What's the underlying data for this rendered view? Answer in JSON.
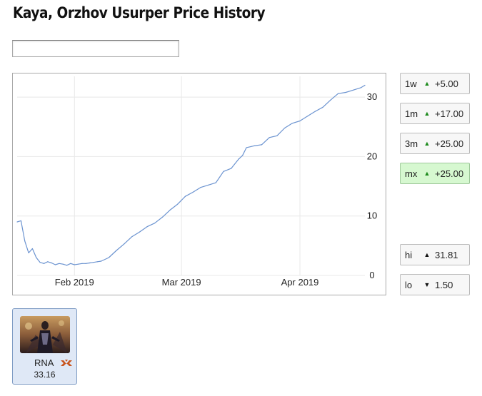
{
  "page": {
    "title": "Kaya, Orzhov Usurper Price History"
  },
  "search": {
    "value": "",
    "placeholder": ""
  },
  "chart_data": {
    "type": "line",
    "xlabel": "",
    "ylabel": "",
    "x_tick_labels": [
      "Feb 2019",
      "Mar 2019",
      "Apr 2019"
    ],
    "y_ticks": [
      0,
      10,
      20,
      30
    ],
    "ylim": [
      0,
      33.5
    ],
    "y_axis_position": "right",
    "grid": true,
    "legend": "none",
    "series_color": "#6b93d0",
    "x": [
      "2019-01-17",
      "2019-01-18",
      "2019-01-19",
      "2019-01-20",
      "2019-01-21",
      "2019-01-22",
      "2019-01-23",
      "2019-01-24",
      "2019-01-25",
      "2019-01-26",
      "2019-01-27",
      "2019-01-28",
      "2019-01-29",
      "2019-01-30",
      "2019-01-31",
      "2019-02-01",
      "2019-02-02",
      "2019-02-03",
      "2019-02-04",
      "2019-02-05",
      "2019-02-06",
      "2019-02-07",
      "2019-02-08",
      "2019-02-10",
      "2019-02-12",
      "2019-02-14",
      "2019-02-16",
      "2019-02-18",
      "2019-02-20",
      "2019-02-22",
      "2019-02-24",
      "2019-02-26",
      "2019-02-28",
      "2019-03-02",
      "2019-03-04",
      "2019-03-06",
      "2019-03-08",
      "2019-03-10",
      "2019-03-12",
      "2019-03-14",
      "2019-03-16",
      "2019-03-17",
      "2019-03-18",
      "2019-03-20",
      "2019-03-22",
      "2019-03-24",
      "2019-03-26",
      "2019-03-28",
      "2019-03-30",
      "2019-04-01",
      "2019-04-03",
      "2019-04-05",
      "2019-04-07",
      "2019-04-09",
      "2019-04-11",
      "2019-04-13",
      "2019-04-15",
      "2019-04-17",
      "2019-04-18"
    ],
    "values": [
      9.0,
      9.2,
      5.8,
      3.8,
      4.5,
      3.0,
      2.2,
      2.0,
      2.3,
      2.1,
      1.8,
      2.0,
      1.9,
      1.7,
      2.0,
      1.8,
      1.9,
      2.0,
      2.0,
      2.1,
      2.2,
      2.3,
      2.4,
      3.0,
      4.2,
      5.3,
      6.5,
      7.3,
      8.2,
      8.8,
      9.8,
      11.0,
      12.0,
      13.3,
      14.0,
      14.8,
      15.2,
      15.6,
      17.5,
      18.0,
      19.6,
      20.2,
      21.5,
      21.8,
      22.0,
      23.2,
      23.5,
      24.8,
      25.6,
      26.0,
      26.8,
      27.6,
      28.3,
      29.5,
      30.6,
      30.8,
      31.2,
      31.6,
      32.0
    ],
    "x_domain": [
      "2019-01-17",
      "2019-04-18"
    ]
  },
  "stats": [
    {
      "label": "1w",
      "direction": "up",
      "value": "+5.00",
      "active": false
    },
    {
      "label": "1m",
      "direction": "up",
      "value": "+17.00",
      "active": false
    },
    {
      "label": "3m",
      "direction": "up",
      "value": "+25.00",
      "active": false
    },
    {
      "label": "mx",
      "direction": "up",
      "value": "+25.00",
      "active": true
    }
  ],
  "hilo": [
    {
      "label": "hi",
      "direction": "up",
      "value": "31.81"
    },
    {
      "label": "lo",
      "direction": "down",
      "value": "1.50"
    }
  ],
  "printings": [
    {
      "set": "RNA",
      "price": "33.16",
      "icon": "rna-set-icon"
    }
  ],
  "colors": {
    "up": "#1c8a1c",
    "active_bg": "#d6f8d0",
    "card_bg": "#dfe8f6",
    "line": "#6b93d0",
    "set_icon": "#c8541e"
  }
}
